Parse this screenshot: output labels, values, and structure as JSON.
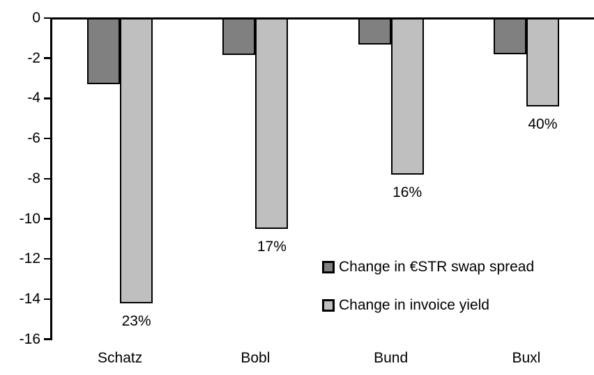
{
  "chart_data": {
    "type": "bar",
    "title": "",
    "xlabel": "",
    "ylabel": "",
    "categories": [
      "Schatz",
      "Bobl",
      "Bund",
      "Buxl"
    ],
    "series": [
      {
        "name": "Change in €STR swap spread",
        "color": "#808080",
        "values": [
          -3.3,
          -1.85,
          -1.3,
          -1.8
        ]
      },
      {
        "name": "Change in invoice yield",
        "color": "#bfbfbf",
        "values": [
          -14.2,
          -10.5,
          -7.8,
          -4.4
        ],
        "labels": [
          "23%",
          "17%",
          "16%",
          "40%"
        ]
      }
    ],
    "ylim": [
      -16,
      0
    ],
    "yticks": [
      {
        "value": 0,
        "label": "0"
      },
      {
        "value": -2,
        "label": "-2"
      },
      {
        "value": -4,
        "label": "-4"
      },
      {
        "value": -6,
        "label": "-6"
      },
      {
        "value": -8,
        "label": "-8"
      },
      {
        "value": -10,
        "label": "-10"
      },
      {
        "value": -12,
        "label": "-12"
      },
      {
        "value": -14,
        "label": "-14"
      },
      {
        "value": -16,
        "label": "-16"
      }
    ],
    "grid": false,
    "legend_position": "inside-right",
    "bar_outline_color": "#000000",
    "axis_color": "#000000",
    "text_color": "#000000"
  }
}
